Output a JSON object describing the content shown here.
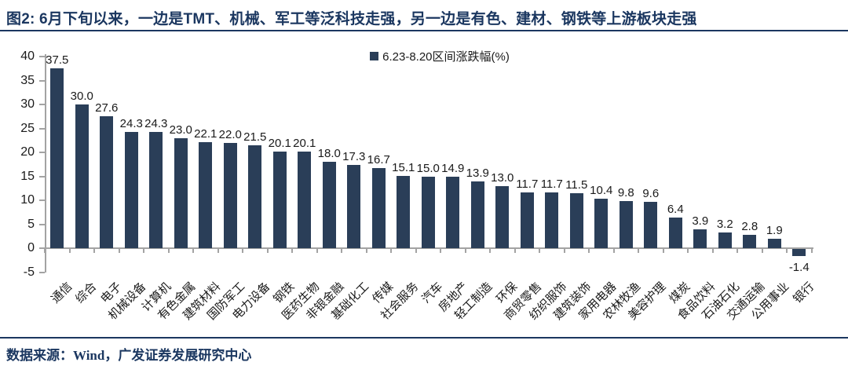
{
  "header": {
    "title": "图2:  6月下旬以来，一边是TMT、机械、军工等泛科技走强，另一边是有色、建材、钢铁等上游板块走强"
  },
  "legend": {
    "label": "6.23-8.20区间涨跌幅(%)"
  },
  "footer": {
    "source": "数据来源：Wind，广发证券发展研究中心"
  },
  "colors": {
    "bar": "#2A3E58",
    "title": "#1B3760",
    "rule": "#1B3760",
    "axis": "#a3a3a3",
    "text": "#1a1a1a"
  },
  "chart_data": {
    "type": "bar",
    "title": "6.23-8.20区间涨跌幅(%)",
    "legend_position": "top-center",
    "grid": false,
    "xlabel": "",
    "ylabel": "",
    "ylim": [
      -5,
      40
    ],
    "yticks": [
      40,
      35,
      30,
      25,
      20,
      15,
      10,
      5,
      0,
      -5
    ],
    "categories": [
      "通信",
      "综合",
      "电子",
      "机械设备",
      "计算机",
      "有色金属",
      "建筑材料",
      "国防军工",
      "电力设备",
      "钢铁",
      "医药生物",
      "非银金融",
      "基础化工",
      "传媒",
      "社会服务",
      "汽车",
      "房地产",
      "轻工制造",
      "环保",
      "商贸零售",
      "纺织服饰",
      "建筑装饰",
      "家用电器",
      "农林牧渔",
      "美容护理",
      "煤炭",
      "食品饮料",
      "石油石化",
      "交通运输",
      "公用事业",
      "银行"
    ],
    "values": [
      37.5,
      30.0,
      27.6,
      24.3,
      24.3,
      23.0,
      22.1,
      22.0,
      21.5,
      20.1,
      20.1,
      18.0,
      17.3,
      16.7,
      15.1,
      15.0,
      14.9,
      13.9,
      13.0,
      11.7,
      11.7,
      11.5,
      10.4,
      9.8,
      9.6,
      6.4,
      3.9,
      3.2,
      2.8,
      1.9,
      -1.4
    ]
  }
}
